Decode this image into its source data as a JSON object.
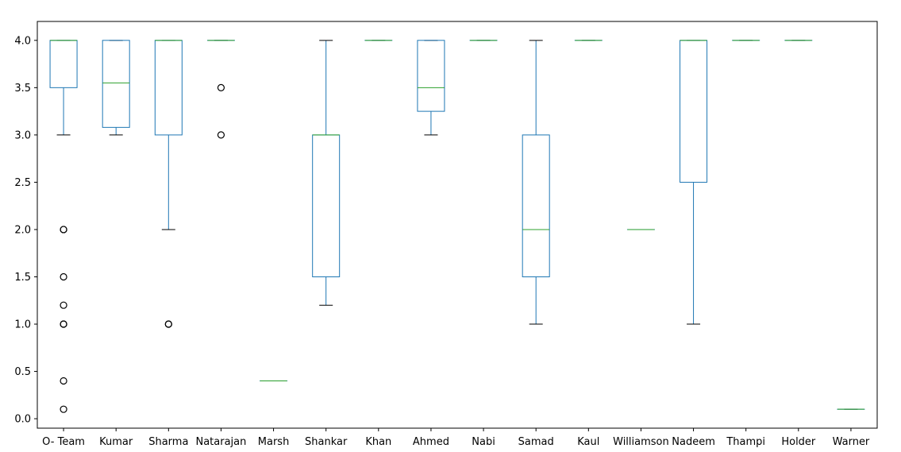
{
  "chart_data": {
    "type": "box",
    "title": "",
    "xlabel": "",
    "ylabel": "",
    "ylim": [
      -0.1,
      4.2
    ],
    "yticks": [
      0.0,
      0.5,
      1.0,
      1.5,
      2.0,
      2.5,
      3.0,
      3.5,
      4.0
    ],
    "ytick_labels": [
      "0.0",
      "0.5",
      "1.0",
      "1.5",
      "2.0",
      "2.5",
      "3.0",
      "3.5",
      "4.0"
    ],
    "grid": false,
    "colors": {
      "box": "#1f77b4",
      "median": "#2ca02c",
      "whisker_cap": "#000000",
      "flier": "#000000"
    },
    "categories": [
      "O- Team",
      "Kumar",
      "Sharma",
      "Natarajan",
      "Marsh",
      "Shankar",
      "Khan",
      "Ahmed",
      "Nabi",
      "Samad",
      "Kaul",
      "Williamson",
      "Nadeem",
      "Thampi",
      "Holder",
      "Warner"
    ],
    "boxes": [
      {
        "name": "O- Team",
        "whislo": 3.0,
        "q1": 3.5,
        "med": 4.0,
        "q3": 4.0,
        "whishi": 4.0,
        "fliers": [
          2.0,
          2.0,
          1.5,
          1.2,
          1.0,
          1.0,
          0.4,
          0.1
        ]
      },
      {
        "name": "Kumar",
        "whislo": 3.0,
        "q1": 3.08,
        "med": 3.55,
        "q3": 4.0,
        "whishi": 4.0,
        "fliers": []
      },
      {
        "name": "Sharma",
        "whislo": 2.0,
        "q1": 3.0,
        "med": 4.0,
        "q3": 4.0,
        "whishi": 4.0,
        "fliers": [
          1.0,
          1.0
        ]
      },
      {
        "name": "Natarajan",
        "whislo": 4.0,
        "q1": 4.0,
        "med": 4.0,
        "q3": 4.0,
        "whishi": 4.0,
        "fliers": [
          3.5,
          3.0
        ]
      },
      {
        "name": "Marsh",
        "whislo": 0.4,
        "q1": 0.4,
        "med": 0.4,
        "q3": 0.4,
        "whishi": 0.4,
        "fliers": []
      },
      {
        "name": "Shankar",
        "whislo": 1.2,
        "q1": 1.5,
        "med": 3.0,
        "q3": 3.0,
        "whishi": 4.0,
        "fliers": []
      },
      {
        "name": "Khan",
        "whislo": 4.0,
        "q1": 4.0,
        "med": 4.0,
        "q3": 4.0,
        "whishi": 4.0,
        "fliers": []
      },
      {
        "name": "Ahmed",
        "whislo": 3.0,
        "q1": 3.25,
        "med": 3.5,
        "q3": 4.0,
        "whishi": 4.0,
        "fliers": []
      },
      {
        "name": "Nabi",
        "whislo": 4.0,
        "q1": 4.0,
        "med": 4.0,
        "q3": 4.0,
        "whishi": 4.0,
        "fliers": []
      },
      {
        "name": "Samad",
        "whislo": 1.0,
        "q1": 1.5,
        "med": 2.0,
        "q3": 3.0,
        "whishi": 4.0,
        "fliers": []
      },
      {
        "name": "Kaul",
        "whislo": 4.0,
        "q1": 4.0,
        "med": 4.0,
        "q3": 4.0,
        "whishi": 4.0,
        "fliers": []
      },
      {
        "name": "Williamson",
        "whislo": 2.0,
        "q1": 2.0,
        "med": 2.0,
        "q3": 2.0,
        "whishi": 2.0,
        "fliers": []
      },
      {
        "name": "Nadeem",
        "whislo": 1.0,
        "q1": 2.5,
        "med": 4.0,
        "q3": 4.0,
        "whishi": 4.0,
        "fliers": []
      },
      {
        "name": "Thampi",
        "whislo": 4.0,
        "q1": 4.0,
        "med": 4.0,
        "q3": 4.0,
        "whishi": 4.0,
        "fliers": []
      },
      {
        "name": "Holder",
        "whislo": 4.0,
        "q1": 4.0,
        "med": 4.0,
        "q3": 4.0,
        "whishi": 4.0,
        "fliers": []
      },
      {
        "name": "Warner",
        "whislo": 0.1,
        "q1": 0.1,
        "med": 0.1,
        "q3": 0.1,
        "whishi": 0.1,
        "fliers": []
      }
    ]
  }
}
